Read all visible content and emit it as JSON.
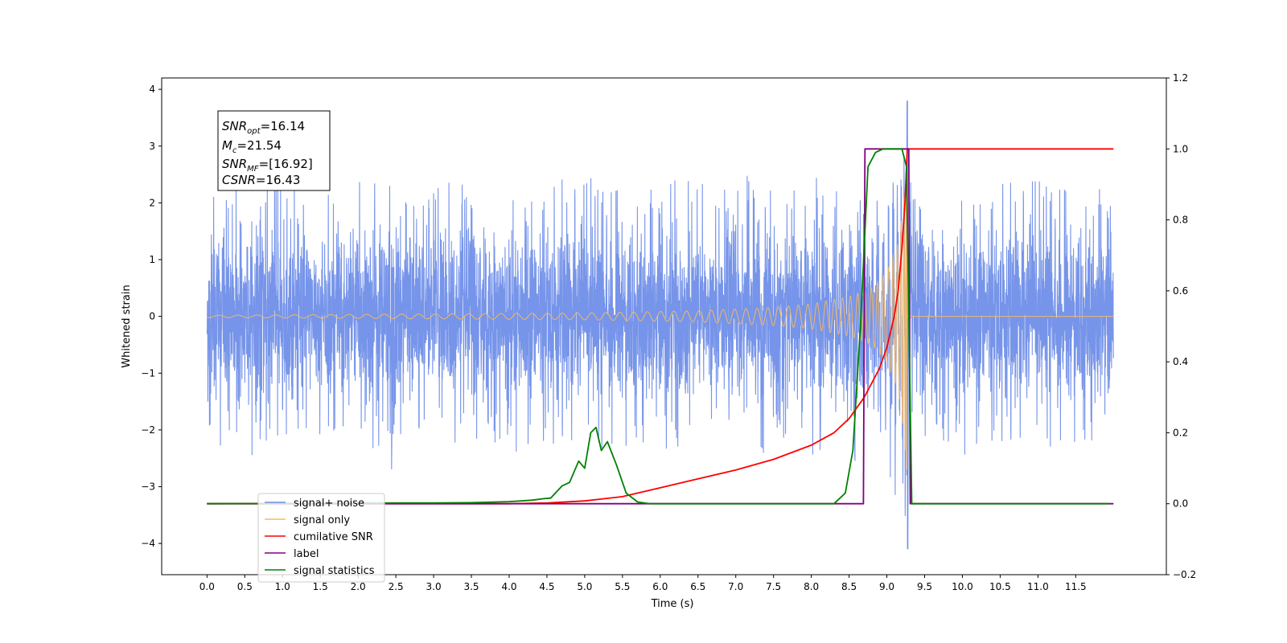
{
  "chart_data": {
    "type": "line",
    "title": "",
    "xlabel": "Time (s)",
    "ylabel": "Whitened strain",
    "xlim": [
      -0.6,
      12.7
    ],
    "ylim": [
      -4.55,
      4.2
    ],
    "y2lim": [
      -0.2,
      1.2
    ],
    "x_ticks": [
      0,
      0.5,
      1,
      1.5,
      2,
      2.5,
      3,
      3.5,
      4,
      4.5,
      5,
      5.5,
      6,
      6.5,
      7,
      7.5,
      8,
      8.5,
      9,
      9.5,
      10,
      10.5,
      11,
      11.5
    ],
    "x_tick_labels": [
      "0.0",
      "0.5",
      "1.0",
      "1.5",
      "2.0",
      "2.5",
      "3.0",
      "3.5",
      "4.0",
      "4.5",
      "5.0",
      "5.5",
      "6.0",
      "6.5",
      "7.0",
      "7.5",
      "8.0",
      "8.5",
      "9.0",
      "9.5",
      "10.0",
      "10.5",
      "11.0",
      "11.5"
    ],
    "y_ticks": [
      -4,
      -3,
      -2,
      -1,
      0,
      1,
      2,
      3,
      4
    ],
    "y_tick_labels": [
      "−4",
      "−3",
      "−2",
      "−1",
      "0",
      "1",
      "2",
      "3",
      "4"
    ],
    "y2_ticks": [
      -0.2,
      0,
      0.2,
      0.4,
      0.6,
      0.8,
      1.0,
      1.2
    ],
    "y2_tick_labels": [
      "−0.2",
      "0.0",
      "0.2",
      "0.4",
      "0.6",
      "0.8",
      "1.0",
      "1.2"
    ],
    "grid": false,
    "legend_position": "lower-left",
    "series": [
      {
        "name": "signal+ noise",
        "axis": "left",
        "color": "#6f8ee8",
        "kind": "noise",
        "x_range": [
          0,
          12
        ],
        "typical_amplitude_range": [
          -2.3,
          2.4
        ],
        "spike": {
          "x": 9.27,
          "y_max": 3.8,
          "y_min": -4.1
        }
      },
      {
        "name": "signal only",
        "axis": "left",
        "color": "#f5b860",
        "kind": "chirp",
        "x_range": [
          0,
          12
        ],
        "merger_time": 9.27,
        "envelope": [
          {
            "x": 0,
            "y": 0.02
          },
          {
            "x": 5.0,
            "y": 0.06
          },
          {
            "x": 6.5,
            "y": 0.1
          },
          {
            "x": 7.5,
            "y": 0.16
          },
          {
            "x": 8.0,
            "y": 0.22
          },
          {
            "x": 8.5,
            "y": 0.35
          },
          {
            "x": 8.8,
            "y": 0.5
          },
          {
            "x": 9.0,
            "y": 0.8
          },
          {
            "x": 9.15,
            "y": 1.3
          },
          {
            "x": 9.22,
            "y": 2.0
          },
          {
            "x": 9.27,
            "y": 2.8
          }
        ]
      },
      {
        "name": "cumilative SNR",
        "axis": "right",
        "color": "#ff0000",
        "points": [
          {
            "x": 0,
            "y": 0.0
          },
          {
            "x": 4.0,
            "y": 0.0
          },
          {
            "x": 4.5,
            "y": 0.002
          },
          {
            "x": 5.0,
            "y": 0.008
          },
          {
            "x": 5.5,
            "y": 0.02
          },
          {
            "x": 6.0,
            "y": 0.045
          },
          {
            "x": 6.5,
            "y": 0.07
          },
          {
            "x": 7.0,
            "y": 0.095
          },
          {
            "x": 7.5,
            "y": 0.125
          },
          {
            "x": 8.0,
            "y": 0.165
          },
          {
            "x": 8.3,
            "y": 0.2
          },
          {
            "x": 8.5,
            "y": 0.24
          },
          {
            "x": 8.7,
            "y": 0.3
          },
          {
            "x": 8.9,
            "y": 0.38
          },
          {
            "x": 9.0,
            "y": 0.44
          },
          {
            "x": 9.1,
            "y": 0.53
          },
          {
            "x": 9.15,
            "y": 0.6
          },
          {
            "x": 9.2,
            "y": 0.72
          },
          {
            "x": 9.24,
            "y": 0.85
          },
          {
            "x": 9.27,
            "y": 1.0
          },
          {
            "x": 12.0,
            "y": 1.0
          }
        ]
      },
      {
        "name": "label",
        "axis": "right",
        "color": "#800080",
        "points": [
          {
            "x": 0,
            "y": 0
          },
          {
            "x": 8.69,
            "y": 0
          },
          {
            "x": 8.71,
            "y": 1.0
          },
          {
            "x": 9.29,
            "y": 1.0
          },
          {
            "x": 9.31,
            "y": 0
          },
          {
            "x": 12.0,
            "y": 0
          }
        ]
      },
      {
        "name": "signal statistics",
        "axis": "right",
        "color": "#008000",
        "points": [
          {
            "x": 0,
            "y": 0
          },
          {
            "x": 2.5,
            "y": 0.002
          },
          {
            "x": 3.0,
            "y": 0.002
          },
          {
            "x": 3.5,
            "y": 0.003
          },
          {
            "x": 4.0,
            "y": 0.006
          },
          {
            "x": 4.3,
            "y": 0.01
          },
          {
            "x": 4.45,
            "y": 0.014
          },
          {
            "x": 4.55,
            "y": 0.016
          },
          {
            "x": 4.7,
            "y": 0.05
          },
          {
            "x": 4.8,
            "y": 0.06
          },
          {
            "x": 4.92,
            "y": 0.12
          },
          {
            "x": 5.0,
            "y": 0.1
          },
          {
            "x": 5.08,
            "y": 0.2
          },
          {
            "x": 5.15,
            "y": 0.215
          },
          {
            "x": 5.22,
            "y": 0.15
          },
          {
            "x": 5.3,
            "y": 0.175
          },
          {
            "x": 5.42,
            "y": 0.11
          },
          {
            "x": 5.55,
            "y": 0.03
          },
          {
            "x": 5.7,
            "y": 0.005
          },
          {
            "x": 5.85,
            "y": 0.0
          },
          {
            "x": 8.3,
            "y": 0.0
          },
          {
            "x": 8.45,
            "y": 0.03
          },
          {
            "x": 8.55,
            "y": 0.15
          },
          {
            "x": 8.65,
            "y": 0.5
          },
          {
            "x": 8.75,
            "y": 0.95
          },
          {
            "x": 8.85,
            "y": 0.99
          },
          {
            "x": 8.95,
            "y": 1.0
          },
          {
            "x": 9.2,
            "y": 1.0
          },
          {
            "x": 9.26,
            "y": 0.95
          },
          {
            "x": 9.33,
            "y": 0.0
          },
          {
            "x": 11.95,
            "y": 0.0
          }
        ]
      }
    ],
    "annotation_box": {
      "lines": [
        {
          "symbol": "SNR",
          "sub": "opt",
          "value": "=16.14"
        },
        {
          "symbol": "M",
          "sub": "c",
          "value": "=21.54"
        },
        {
          "symbol": "SNR",
          "sub": "MF",
          "value": "=[16.92]"
        },
        {
          "symbol": "CSNR",
          "sub": "",
          "value": "=16.43"
        }
      ]
    }
  }
}
